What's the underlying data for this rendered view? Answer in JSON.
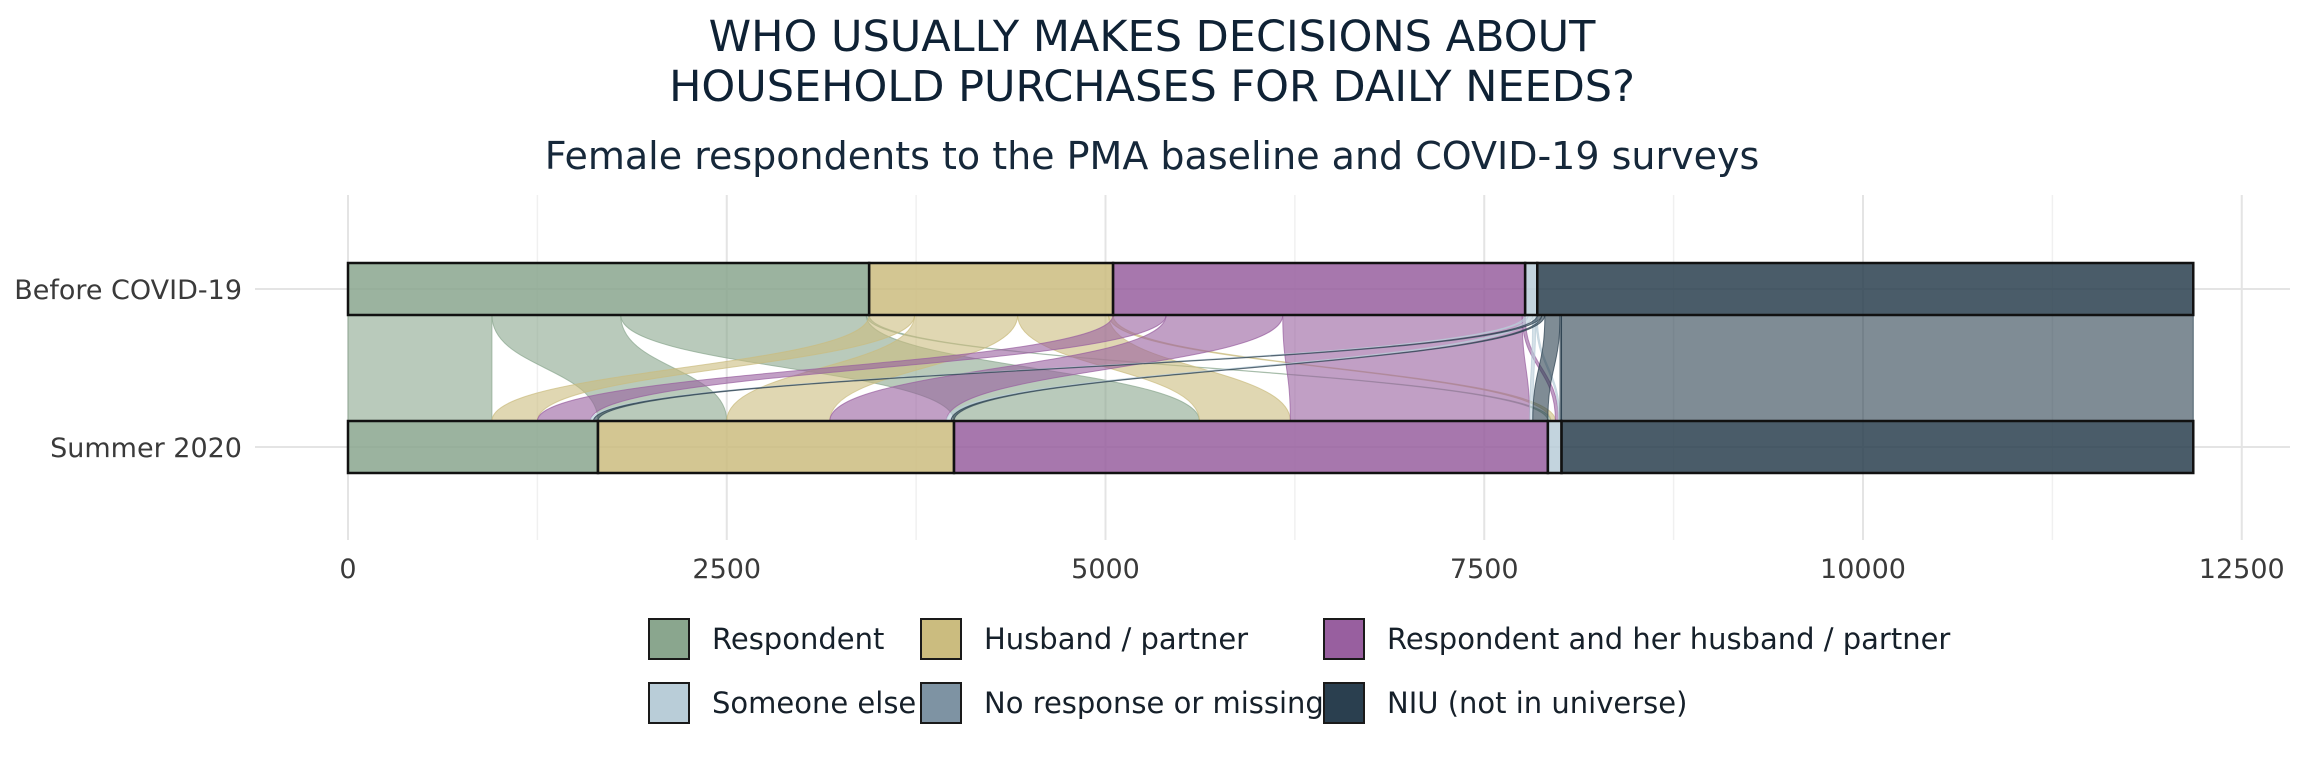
{
  "chart_data": {
    "type": "alluvial",
    "title_line1": "WHO USUALLY MAKES DECISIONS ABOUT",
    "title_line2": "HOUSEHOLD PURCHASES FOR DAILY NEEDS?",
    "subtitle": "Female respondents to the PMA baseline and COVID-19 surveys",
    "stages": [
      "Before COVID-19",
      "Summer 2020"
    ],
    "xlim": [
      0,
      12500
    ],
    "xticks": [
      0,
      2500,
      5000,
      7500,
      10000,
      12500
    ],
    "grid": true,
    "legend_position": "bottom",
    "categories": [
      {
        "name": "Respondent",
        "color": "#8aa68e"
      },
      {
        "name": "Husband / partner",
        "color": "#cbbc7f"
      },
      {
        "name": "Respondent and her husband / partner",
        "color": "#985f9f"
      },
      {
        "name": "Someone else",
        "color": "#b9cdd8"
      },
      {
        "name": "No response or missing",
        "color": "#7e93a3"
      },
      {
        "name": "NIU (not in universe)",
        "color": "#2a3f4f"
      }
    ],
    "stage_totals": {
      "Before COVID-19": [
        3440,
        1610,
        2720,
        80,
        0,
        4330
      ],
      "Summer 2020": [
        1650,
        2350,
        3920,
        90,
        0,
        4170
      ]
    },
    "flows": [
      {
        "from": 0,
        "to": 0,
        "value": 950
      },
      {
        "from": 0,
        "to": 1,
        "value": 850
      },
      {
        "from": 0,
        "to": 2,
        "value": 1620
      },
      {
        "from": 0,
        "to": 3,
        "value": 20
      },
      {
        "from": 1,
        "to": 0,
        "value": 300
      },
      {
        "from": 1,
        "to": 1,
        "value": 680
      },
      {
        "from": 1,
        "to": 2,
        "value": 600
      },
      {
        "from": 1,
        "to": 3,
        "value": 30
      },
      {
        "from": 2,
        "to": 0,
        "value": 350
      },
      {
        "from": 2,
        "to": 1,
        "value": 770
      },
      {
        "from": 2,
        "to": 2,
        "value": 1580
      },
      {
        "from": 2,
        "to": 3,
        "value": 20
      },
      {
        "from": 3,
        "to": 0,
        "value": 20
      },
      {
        "from": 3,
        "to": 1,
        "value": 30
      },
      {
        "from": 3,
        "to": 2,
        "value": 20
      },
      {
        "from": 3,
        "to": 3,
        "value": 10
      },
      {
        "from": 5,
        "to": 0,
        "value": 30
      },
      {
        "from": 5,
        "to": 1,
        "value": 20
      },
      {
        "from": 5,
        "to": 2,
        "value": 100
      },
      {
        "from": 5,
        "to": 3,
        "value": 10
      },
      {
        "from": 5,
        "to": 5,
        "value": 4170
      }
    ]
  }
}
